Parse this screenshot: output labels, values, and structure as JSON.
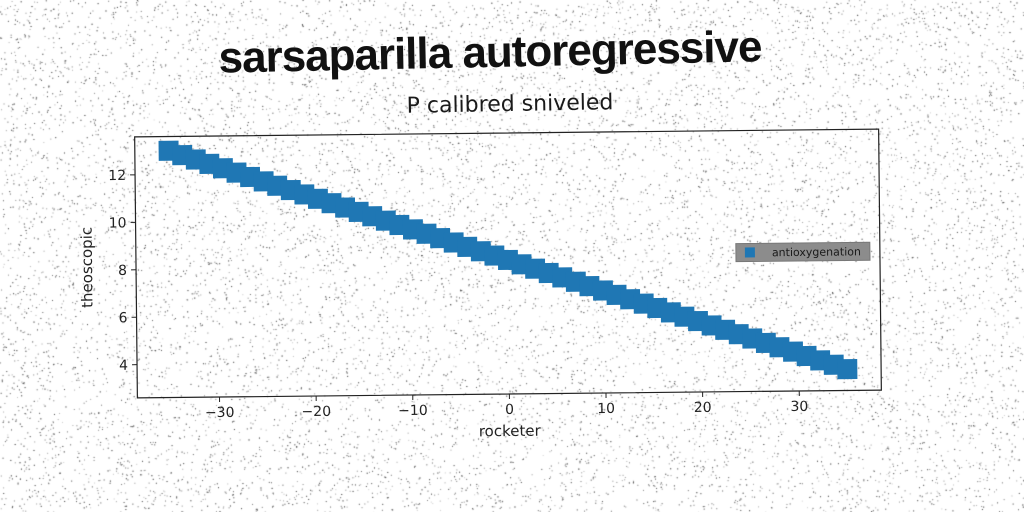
{
  "headline": "sarsaparilla autoregressive",
  "chart_data": {
    "type": "scatter",
    "title": "P calibred sniveled",
    "xlabel": "rocketer",
    "ylabel": "theoscopic",
    "xlim": [
      -38.5,
      38.5
    ],
    "ylim": [
      2.6,
      13.6
    ],
    "xticks": [
      -30,
      -20,
      -10,
      0,
      10,
      20,
      30
    ],
    "xtick_labels": [
      "−30",
      "−20",
      "−10",
      "0",
      "10",
      "20",
      "30"
    ],
    "yticks": [
      4,
      6,
      8,
      10,
      12
    ],
    "yticks_labels": [
      "4",
      "6",
      "8",
      "10",
      "12"
    ],
    "grid": false,
    "legend": {
      "position": "center-right"
    },
    "series": [
      {
        "name": "antioxygenation",
        "color": "#1f77b4",
        "marker": "square",
        "x": [
          -35,
          -33.6,
          -32.2,
          -30.8,
          -29.4,
          -28,
          -26.6,
          -25.2,
          -23.8,
          -22.4,
          -21,
          -19.6,
          -18.2,
          -16.8,
          -15.4,
          -14,
          -12.6,
          -11.2,
          -9.8,
          -8.4,
          -7,
          -5.6,
          -4.2,
          -2.8,
          -1.4,
          0,
          1.4,
          2.8,
          4.2,
          5.6,
          7,
          8.4,
          9.8,
          11.2,
          12.6,
          14,
          15.4,
          16.8,
          18.2,
          19.6,
          21,
          22.4,
          23.8,
          25.2,
          26.6,
          28,
          29.4,
          30.8,
          32.2,
          33.6,
          35
        ],
        "y": [
          13.0,
          12.81,
          12.62,
          12.43,
          12.24,
          12.05,
          11.86,
          11.67,
          11.48,
          11.29,
          11.1,
          10.91,
          10.72,
          10.53,
          10.34,
          10.15,
          9.96,
          9.77,
          9.58,
          9.39,
          9.2,
          9.01,
          8.82,
          8.63,
          8.44,
          8.25,
          8.06,
          7.87,
          7.68,
          7.49,
          7.3,
          7.11,
          6.92,
          6.73,
          6.54,
          6.35,
          6.16,
          5.97,
          5.78,
          5.59,
          5.4,
          5.21,
          5.02,
          4.83,
          4.64,
          4.45,
          4.26,
          4.07,
          3.88,
          3.69,
          3.5
        ]
      }
    ]
  }
}
